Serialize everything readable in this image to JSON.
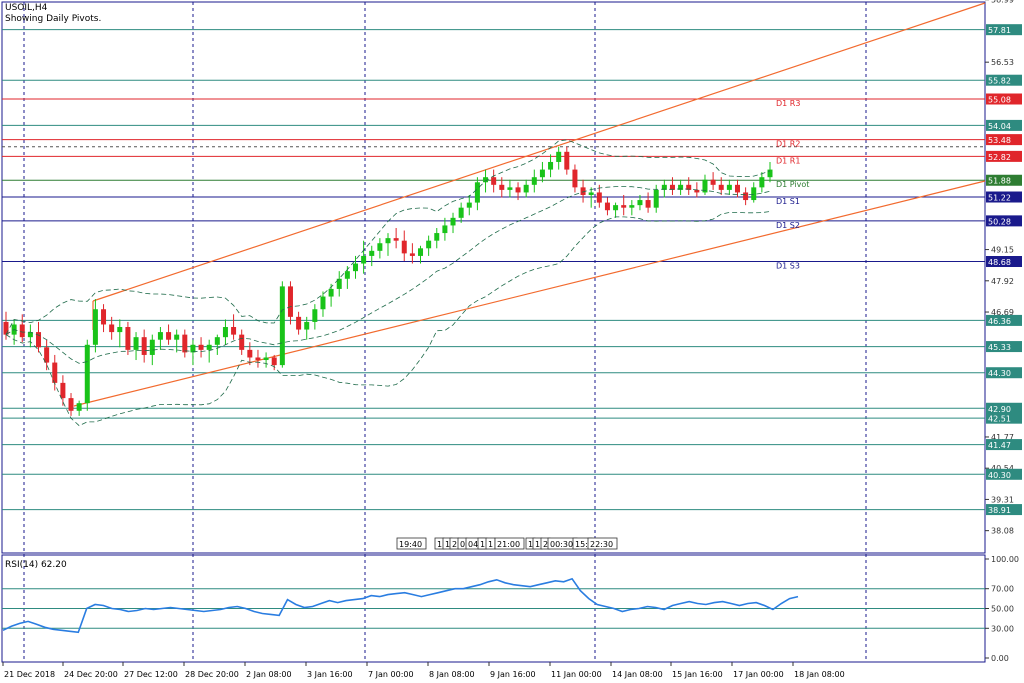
{
  "header": {
    "symbol": "USOIL,H4",
    "subtitle": "Showing Daily Pivots."
  },
  "colors": {
    "border": "#1a1a8c",
    "grid_vertical": "#1a1a8c",
    "hline_teal": "#2e8b80",
    "hline_red": "#e0262b",
    "pivot_green": "#2e7d32",
    "channel": "#f26a2e",
    "bull_candle": "#19c319",
    "bear_candle": "#e0262b",
    "bollinger": "#1f6b4a",
    "rsi_line": "#2a7de1",
    "rsi_levels": "#2e8b80",
    "support_blue": "#1a1a8c"
  },
  "chart_data": [
    {
      "type": "candlestick",
      "title": "USOIL,H4",
      "subtitle": "Showing Daily Pivots.",
      "ylim": [
        37.2,
        58.9
      ],
      "y_ticks": [
        "58.99",
        "57.81",
        "56.53",
        "55.82",
        "55.08",
        "54.04",
        "53.48",
        "52.82",
        "51.88",
        "51.22",
        "50.28",
        "49.15",
        "48.68",
        "47.92",
        "46.69",
        "46.36",
        "45.33",
        "44.30",
        "42.90",
        "42.51",
        "41.77",
        "41.47",
        "40.54",
        "40.30",
        "39.31",
        "38.91",
        "38.08"
      ],
      "x_ticks": [
        "21 Dec 2018",
        "24 Dec 20:00",
        "27 Dec 12:00",
        "28 Dec 20:00",
        "2 Jan 08:00",
        "3 Jan 16:00",
        "7 Jan 00:00",
        "8 Jan 08:00",
        "9 Jan 16:00",
        "11 Jan 00:00",
        "14 Jan 08:00",
        "15 Jan 16:00",
        "17 Jan 00:00",
        "18 Jan 08:00"
      ],
      "highlighted_levels": [
        {
          "value": 57.81,
          "label": "57.81",
          "color": "teal"
        },
        {
          "value": 55.82,
          "label": "55.82",
          "color": "teal"
        },
        {
          "value": 55.08,
          "label": "55.08",
          "color": "red"
        },
        {
          "value": 54.04,
          "label": "54.04",
          "color": "teal"
        },
        {
          "value": 53.48,
          "label": "53.48",
          "color": "red"
        },
        {
          "value": 52.82,
          "label": "52.82",
          "color": "red"
        },
        {
          "value": 51.88,
          "label": "51.88",
          "color": "green"
        },
        {
          "value": 51.22,
          "label": "51.22",
          "color": "blue"
        },
        {
          "value": 50.28,
          "label": "50.28",
          "color": "blue"
        },
        {
          "value": 48.68,
          "label": "48.68",
          "color": "blue"
        },
        {
          "value": 46.36,
          "label": "46.36",
          "color": "teal"
        },
        {
          "value": 45.33,
          "label": "45.33",
          "color": "teal"
        },
        {
          "value": 44.3,
          "label": "44.30",
          "color": "teal"
        },
        {
          "value": 42.9,
          "label": "42.90",
          "color": "teal"
        },
        {
          "value": 42.51,
          "label": "42.51",
          "color": "teal"
        },
        {
          "value": 41.47,
          "label": "41.47",
          "color": "teal"
        },
        {
          "value": 40.3,
          "label": "40.30",
          "color": "teal"
        },
        {
          "value": 38.91,
          "label": "38.91",
          "color": "teal"
        }
      ],
      "pivots": [
        {
          "name": "D1 R3",
          "value": 55.08
        },
        {
          "name": "D1 R2",
          "value": 53.48
        },
        {
          "name": "D1 R1",
          "value": 52.82
        },
        {
          "name": "D1 Pivot",
          "value": 51.88
        },
        {
          "name": "D1 S1",
          "value": 51.22
        },
        {
          "name": "D1 S2",
          "value": 50.28
        },
        {
          "name": "D1 S3",
          "value": 48.68
        }
      ],
      "candles": [
        {
          "o": 46.3,
          "h": 46.7,
          "l": 45.6,
          "c": 45.8
        },
        {
          "o": 45.8,
          "h": 46.4,
          "l": 45.4,
          "c": 46.2
        },
        {
          "o": 46.2,
          "h": 46.6,
          "l": 45.5,
          "c": 45.7
        },
        {
          "o": 45.7,
          "h": 46.2,
          "l": 45.3,
          "c": 45.9
        },
        {
          "o": 45.9,
          "h": 46.3,
          "l": 45.1,
          "c": 45.3
        },
        {
          "o": 45.3,
          "h": 45.6,
          "l": 44.4,
          "c": 44.7
        },
        {
          "o": 44.7,
          "h": 45.0,
          "l": 43.6,
          "c": 43.9
        },
        {
          "o": 43.9,
          "h": 44.2,
          "l": 43.0,
          "c": 43.3
        },
        {
          "o": 43.3,
          "h": 43.5,
          "l": 42.6,
          "c": 42.8
        },
        {
          "o": 42.8,
          "h": 43.2,
          "l": 42.6,
          "c": 43.1
        },
        {
          "o": 43.1,
          "h": 45.6,
          "l": 42.8,
          "c": 45.4
        },
        {
          "o": 45.4,
          "h": 47.2,
          "l": 45.1,
          "c": 46.8
        },
        {
          "o": 46.8,
          "h": 47.0,
          "l": 45.9,
          "c": 46.2
        },
        {
          "o": 46.2,
          "h": 46.5,
          "l": 45.6,
          "c": 45.9
        },
        {
          "o": 45.9,
          "h": 46.4,
          "l": 45.3,
          "c": 46.1
        },
        {
          "o": 46.1,
          "h": 46.3,
          "l": 45.0,
          "c": 45.2
        },
        {
          "o": 45.2,
          "h": 45.9,
          "l": 44.8,
          "c": 45.7
        },
        {
          "o": 45.7,
          "h": 46.0,
          "l": 44.7,
          "c": 45.0
        },
        {
          "o": 45.0,
          "h": 45.8,
          "l": 44.6,
          "c": 45.6
        },
        {
          "o": 45.6,
          "h": 46.1,
          "l": 45.2,
          "c": 45.9
        },
        {
          "o": 45.9,
          "h": 46.2,
          "l": 45.4,
          "c": 45.6
        },
        {
          "o": 45.6,
          "h": 46.0,
          "l": 45.1,
          "c": 45.8
        },
        {
          "o": 45.8,
          "h": 46.0,
          "l": 44.9,
          "c": 45.1
        },
        {
          "o": 45.1,
          "h": 45.6,
          "l": 44.6,
          "c": 45.4
        },
        {
          "o": 45.4,
          "h": 45.7,
          "l": 44.9,
          "c": 45.2
        },
        {
          "o": 45.2,
          "h": 45.6,
          "l": 44.7,
          "c": 45.4
        },
        {
          "o": 45.4,
          "h": 45.8,
          "l": 45.0,
          "c": 45.7
        },
        {
          "o": 45.7,
          "h": 46.4,
          "l": 45.4,
          "c": 46.1
        },
        {
          "o": 46.1,
          "h": 46.6,
          "l": 45.6,
          "c": 45.8
        },
        {
          "o": 45.8,
          "h": 46.0,
          "l": 45.0,
          "c": 45.2
        },
        {
          "o": 45.2,
          "h": 45.5,
          "l": 44.6,
          "c": 44.9
        },
        {
          "o": 44.9,
          "h": 45.2,
          "l": 44.5,
          "c": 44.8
        },
        {
          "o": 44.8,
          "h": 45.1,
          "l": 44.5,
          "c": 44.9
        },
        {
          "o": 44.9,
          "h": 45.0,
          "l": 44.4,
          "c": 44.6
        },
        {
          "o": 44.6,
          "h": 47.9,
          "l": 44.5,
          "c": 47.7
        },
        {
          "o": 47.7,
          "h": 47.9,
          "l": 46.2,
          "c": 46.5
        },
        {
          "o": 46.5,
          "h": 46.7,
          "l": 45.8,
          "c": 46.0
        },
        {
          "o": 46.0,
          "h": 46.5,
          "l": 45.6,
          "c": 46.3
        },
        {
          "o": 46.3,
          "h": 47.0,
          "l": 46.0,
          "c": 46.8
        },
        {
          "o": 46.8,
          "h": 47.5,
          "l": 46.5,
          "c": 47.3
        },
        {
          "o": 47.3,
          "h": 47.8,
          "l": 46.9,
          "c": 47.6
        },
        {
          "o": 47.6,
          "h": 48.3,
          "l": 47.3,
          "c": 48.0
        },
        {
          "o": 48.0,
          "h": 48.5,
          "l": 47.6,
          "c": 48.3
        },
        {
          "o": 48.3,
          "h": 48.9,
          "l": 48.0,
          "c": 48.6
        },
        {
          "o": 48.6,
          "h": 49.5,
          "l": 48.2,
          "c": 48.9
        },
        {
          "o": 48.9,
          "h": 49.3,
          "l": 48.5,
          "c": 49.1
        },
        {
          "o": 49.1,
          "h": 49.6,
          "l": 48.8,
          "c": 49.4
        },
        {
          "o": 49.4,
          "h": 49.8,
          "l": 48.9,
          "c": 49.6
        },
        {
          "o": 49.6,
          "h": 50.0,
          "l": 49.2,
          "c": 49.5
        },
        {
          "o": 49.5,
          "h": 49.9,
          "l": 48.7,
          "c": 49.0
        },
        {
          "o": 49.0,
          "h": 49.4,
          "l": 48.6,
          "c": 48.9
        },
        {
          "o": 48.9,
          "h": 49.3,
          "l": 48.6,
          "c": 49.2
        },
        {
          "o": 49.2,
          "h": 49.7,
          "l": 48.9,
          "c": 49.5
        },
        {
          "o": 49.5,
          "h": 50.0,
          "l": 49.2,
          "c": 49.8
        },
        {
          "o": 49.8,
          "h": 50.4,
          "l": 49.5,
          "c": 50.1
        },
        {
          "o": 50.1,
          "h": 50.6,
          "l": 49.8,
          "c": 50.4
        },
        {
          "o": 50.4,
          "h": 51.0,
          "l": 50.2,
          "c": 50.8
        },
        {
          "o": 50.8,
          "h": 51.3,
          "l": 50.5,
          "c": 51.0
        },
        {
          "o": 51.0,
          "h": 52.0,
          "l": 50.7,
          "c": 51.8
        },
        {
          "o": 51.8,
          "h": 52.3,
          "l": 51.4,
          "c": 52.0
        },
        {
          "o": 52.0,
          "h": 52.3,
          "l": 51.4,
          "c": 51.7
        },
        {
          "o": 51.7,
          "h": 52.0,
          "l": 51.2,
          "c": 51.5
        },
        {
          "o": 51.5,
          "h": 51.9,
          "l": 51.2,
          "c": 51.6
        },
        {
          "o": 51.6,
          "h": 51.8,
          "l": 51.1,
          "c": 51.4
        },
        {
          "o": 51.4,
          "h": 51.9,
          "l": 51.2,
          "c": 51.7
        },
        {
          "o": 51.7,
          "h": 52.3,
          "l": 51.4,
          "c": 52.0
        },
        {
          "o": 52.0,
          "h": 52.6,
          "l": 51.8,
          "c": 52.3
        },
        {
          "o": 52.3,
          "h": 52.9,
          "l": 52.0,
          "c": 52.6
        },
        {
          "o": 52.6,
          "h": 53.2,
          "l": 52.3,
          "c": 53.0
        },
        {
          "o": 53.0,
          "h": 53.2,
          "l": 52.1,
          "c": 52.3
        },
        {
          "o": 52.3,
          "h": 52.5,
          "l": 51.4,
          "c": 51.6
        },
        {
          "o": 51.6,
          "h": 51.9,
          "l": 51.0,
          "c": 51.3
        },
        {
          "o": 51.3,
          "h": 51.6,
          "l": 50.8,
          "c": 51.4
        },
        {
          "o": 51.4,
          "h": 51.7,
          "l": 50.8,
          "c": 51.0
        },
        {
          "o": 51.0,
          "h": 51.2,
          "l": 50.5,
          "c": 50.7
        },
        {
          "o": 50.7,
          "h": 51.0,
          "l": 50.4,
          "c": 50.9
        },
        {
          "o": 50.9,
          "h": 51.3,
          "l": 50.5,
          "c": 50.8
        },
        {
          "o": 50.8,
          "h": 51.1,
          "l": 50.5,
          "c": 50.9
        },
        {
          "o": 50.9,
          "h": 51.3,
          "l": 50.7,
          "c": 51.1
        },
        {
          "o": 51.1,
          "h": 51.4,
          "l": 50.6,
          "c": 50.8
        },
        {
          "o": 50.8,
          "h": 51.7,
          "l": 50.6,
          "c": 51.5
        },
        {
          "o": 51.5,
          "h": 51.9,
          "l": 51.2,
          "c": 51.7
        },
        {
          "o": 51.7,
          "h": 52.0,
          "l": 51.3,
          "c": 51.5
        },
        {
          "o": 51.5,
          "h": 51.9,
          "l": 51.3,
          "c": 51.7
        },
        {
          "o": 51.7,
          "h": 52.0,
          "l": 51.3,
          "c": 51.5
        },
        {
          "o": 51.5,
          "h": 51.8,
          "l": 51.2,
          "c": 51.4
        },
        {
          "o": 51.4,
          "h": 52.1,
          "l": 51.3,
          "c": 51.9
        },
        {
          "o": 51.9,
          "h": 52.2,
          "l": 51.5,
          "c": 51.7
        },
        {
          "o": 51.7,
          "h": 52.0,
          "l": 51.3,
          "c": 51.5
        },
        {
          "o": 51.5,
          "h": 51.9,
          "l": 51.3,
          "c": 51.7
        },
        {
          "o": 51.7,
          "h": 51.9,
          "l": 51.2,
          "c": 51.4
        },
        {
          "o": 51.4,
          "h": 51.6,
          "l": 50.9,
          "c": 51.1
        },
        {
          "o": 51.1,
          "h": 51.8,
          "l": 51.0,
          "c": 51.6
        },
        {
          "o": 51.6,
          "h": 52.2,
          "l": 51.4,
          "c": 52.0
        },
        {
          "o": 52.0,
          "h": 52.6,
          "l": 51.8,
          "c": 52.3
        }
      ]
    },
    {
      "type": "line",
      "title": "RSI(14) 62.20",
      "ylim": [
        0,
        100
      ],
      "y_ticks": [
        "100.00",
        "70.00",
        "50.00",
        "30.00",
        "0.00"
      ],
      "levels": [
        70,
        50,
        30
      ],
      "series": [
        {
          "name": "RSI(14)",
          "values": [
            28,
            32,
            35,
            37,
            34,
            31,
            29,
            28,
            27,
            26,
            50,
            54,
            53,
            50,
            49,
            47,
            48,
            50,
            49,
            50,
            51,
            50,
            49,
            48,
            47,
            48,
            49,
            51,
            52,
            50,
            47,
            45,
            44,
            43,
            59,
            54,
            51,
            52,
            55,
            58,
            56,
            58,
            59,
            60,
            63,
            62,
            64,
            65,
            66,
            64,
            62,
            64,
            66,
            68,
            70,
            70,
            72,
            74,
            77,
            79,
            76,
            74,
            73,
            72,
            74,
            76,
            78,
            77,
            80,
            68,
            60,
            54,
            52,
            50,
            47,
            49,
            50,
            52,
            51,
            49,
            53,
            55,
            57,
            55,
            54,
            56,
            57,
            55,
            53,
            55,
            56,
            53,
            49,
            55,
            60,
            62
          ]
        }
      ]
    }
  ],
  "time_markers": [
    "19:40",
    "1",
    "1",
    "2",
    "0",
    "04:",
    "1",
    "1",
    "21:00",
    "1",
    "1",
    "2",
    "00:30",
    "15:",
    "22:30"
  ]
}
